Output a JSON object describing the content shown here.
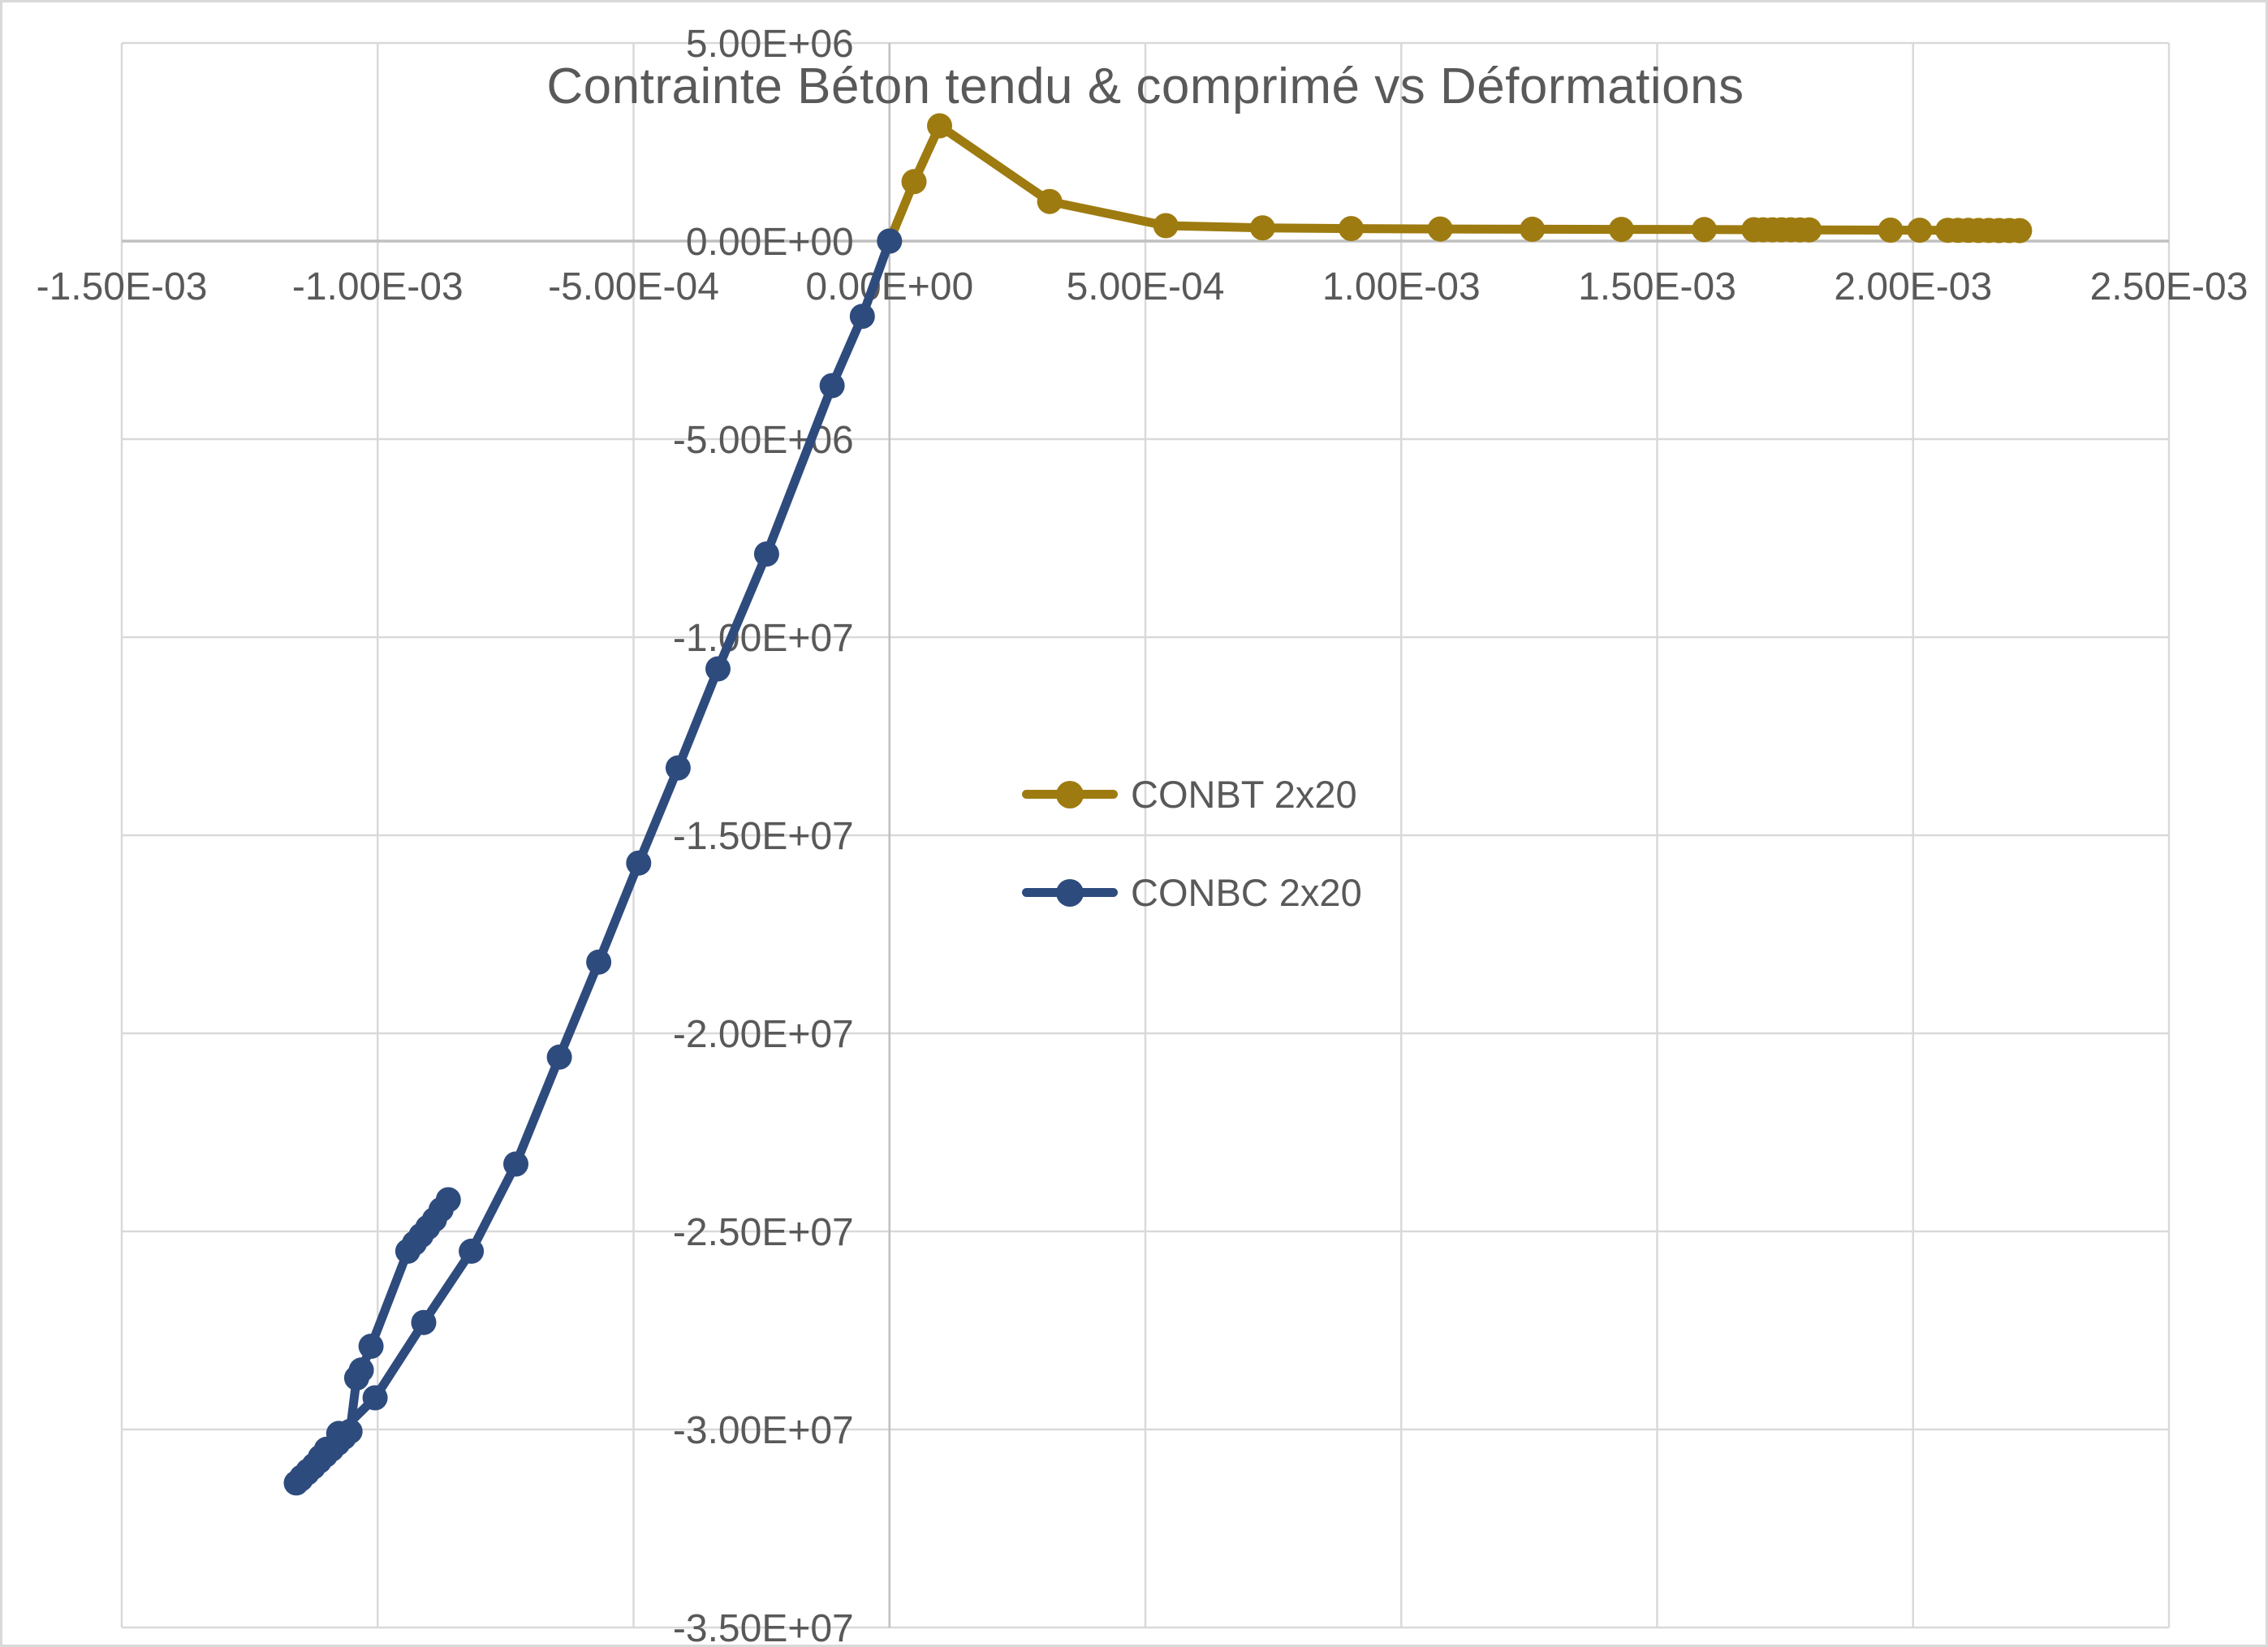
{
  "chart_data": {
    "type": "line",
    "title": "Contrainte Béton tendu & comprimé vs Déformations",
    "xlabel": "",
    "ylabel": "",
    "grid": true,
    "legend_position": "center",
    "colors": {
      "gridline": "#D9D9D9",
      "axis_line": "#C0C0C0",
      "text": "#595959",
      "series_conbt": "#9E7B10",
      "series_conbc": "#2E4B7E"
    },
    "x_axis": {
      "min": -0.0015,
      "max": 0.0025,
      "ticks": [
        {
          "value": -0.0015,
          "label": "-1.50E-03"
        },
        {
          "value": -0.001,
          "label": "-1.00E-03"
        },
        {
          "value": -0.0005,
          "label": "-5.00E-04"
        },
        {
          "value": 0.0,
          "label": "0.00E+00"
        },
        {
          "value": 0.0005,
          "label": "5.00E-04"
        },
        {
          "value": 0.001,
          "label": "1.00E-03"
        },
        {
          "value": 0.0015,
          "label": "1.50E-03"
        },
        {
          "value": 0.002,
          "label": "2.00E-03"
        },
        {
          "value": 0.0025,
          "label": "2.50E-03"
        }
      ]
    },
    "y_axis": {
      "min": -35000000,
      "max": 5000000,
      "ticks": [
        {
          "value": 5000000,
          "label": "5.00E+06"
        },
        {
          "value": 0,
          "label": "0.00E+00"
        },
        {
          "value": -5000000,
          "label": "-5.00E+06"
        },
        {
          "value": -10000000,
          "label": "-1.00E+07"
        },
        {
          "value": -15000000,
          "label": "-1.50E+07"
        },
        {
          "value": -20000000,
          "label": "-2.00E+07"
        },
        {
          "value": -25000000,
          "label": "-2.50E+07"
        },
        {
          "value": -30000000,
          "label": "-3.00E+07"
        },
        {
          "value": -35000000,
          "label": "-3.50E+07"
        }
      ]
    },
    "series": [
      {
        "name": "CONBT 2x20",
        "color": "#9E7B10",
        "marker": "circle",
        "points": [
          [
            0.0,
            0.0
          ],
          [
            4.8e-05,
            1500000
          ],
          [
            9.8e-05,
            2910000
          ],
          [
            0.000313,
            1000000
          ],
          [
            0.00054,
            390000
          ],
          [
            0.000729,
            335000
          ],
          [
            0.000902,
            315000
          ],
          [
            0.001076,
            305000
          ],
          [
            0.001256,
            300000
          ],
          [
            0.00143,
            295000
          ],
          [
            0.001592,
            290000
          ],
          [
            0.001689,
            286000
          ],
          [
            0.001707,
            285000
          ],
          [
            0.001725,
            285000
          ],
          [
            0.001743,
            284000
          ],
          [
            0.001761,
            284000
          ],
          [
            0.001779,
            283000
          ],
          [
            0.001797,
            283000
          ],
          [
            0.001956,
            277000
          ],
          [
            0.002013,
            275000
          ],
          [
            0.002068,
            272000
          ],
          [
            0.002088,
            271000
          ],
          [
            0.002108,
            270000
          ],
          [
            0.002128,
            269000
          ],
          [
            0.002148,
            268000
          ],
          [
            0.002168,
            267000
          ],
          [
            0.002188,
            266000
          ],
          [
            0.002208,
            265000
          ]
        ]
      },
      {
        "name": "CONBC 2x20",
        "color": "#2E4B7E",
        "marker": "circle",
        "points": [
          [
            0.0,
            0.0
          ],
          [
            -5.3e-05,
            -1900000
          ],
          [
            -0.000112,
            -3650000
          ],
          [
            -0.00024,
            -7900000
          ],
          [
            -0.000335,
            -10800000
          ],
          [
            -0.000413,
            -13300000
          ],
          [
            -0.00049,
            -15700000
          ],
          [
            -0.000568,
            -18200000
          ],
          [
            -0.000645,
            -20600000
          ],
          [
            -0.00073,
            -23300000
          ],
          [
            -0.000817,
            -25500000
          ],
          [
            -0.00091,
            -27300000
          ],
          [
            -0.001005,
            -29200000
          ],
          [
            -0.001076,
            -30100000
          ],
          [
            -0.0011,
            -30500000
          ],
          [
            -0.001112,
            -30700000
          ],
          [
            -0.001124,
            -30900000
          ],
          [
            -0.001136,
            -31050000
          ],
          [
            -0.001148,
            -31200000
          ],
          [
            -0.001159,
            -31350000
          ],
          [
            -0.00115,
            -31250000
          ],
          [
            -0.001138,
            -31100000
          ],
          [
            -0.001126,
            -30950000
          ],
          [
            -0.001114,
            -30800000
          ],
          [
            -0.001102,
            -30650000
          ],
          [
            -0.00109,
            -30500000
          ],
          [
            -0.001078,
            -30350000
          ],
          [
            -0.001066,
            -30200000
          ],
          [
            -0.001054,
            -30050000
          ],
          [
            -0.001041,
            -28700000
          ],
          [
            -0.001032,
            -28500000
          ],
          [
            -0.001013,
            -27900000
          ],
          [
            -0.000941,
            -25500000
          ],
          [
            -0.000928,
            -25300000
          ],
          [
            -0.000915,
            -25100000
          ],
          [
            -0.000902,
            -24900000
          ],
          [
            -0.000889,
            -24700000
          ],
          [
            -0.000876,
            -24450000
          ],
          [
            -0.000862,
            -24200000
          ]
        ]
      }
    ]
  }
}
